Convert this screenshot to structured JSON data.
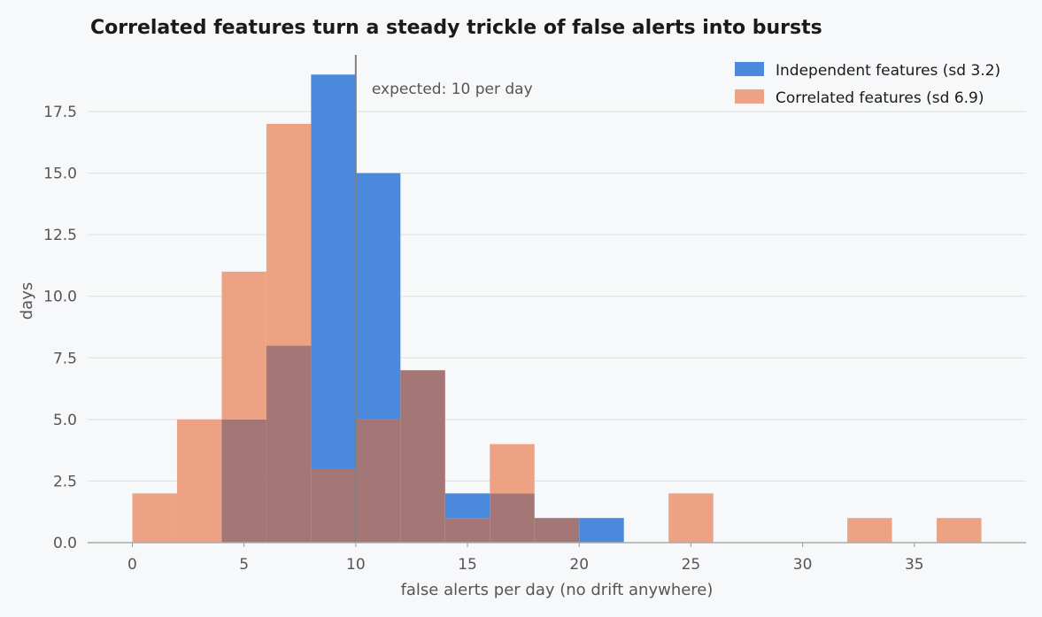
{
  "chart_data": {
    "type": "bar",
    "title": "Correlated features turn a steady trickle of false alerts into bursts",
    "xlabel": "false alerts per day (no drift anywhere)",
    "ylabel": "days",
    "xlim": [
      -2,
      40
    ],
    "ylim": [
      0,
      19.8
    ],
    "xticks": [
      "0",
      "5",
      "10",
      "15",
      "20",
      "25",
      "30",
      "35"
    ],
    "yticks": [
      "0.0",
      "2.5",
      "5.0",
      "7.5",
      "10.0",
      "12.5",
      "15.0",
      "17.5"
    ],
    "grid": "horizontal",
    "legend_position": "top-right",
    "bin_edges": [
      0,
      2,
      4,
      6,
      8,
      10,
      12,
      14,
      16,
      18,
      20,
      22,
      24,
      26,
      28,
      30,
      32,
      34,
      36,
      38
    ],
    "series": [
      {
        "name": "Independent features (sd 3.2)",
        "color": "#4a89dc",
        "values": [
          0,
          0,
          5,
          8,
          19,
          15,
          7,
          2,
          2,
          1,
          1,
          0,
          0,
          0,
          0,
          0,
          0,
          0,
          0
        ]
      },
      {
        "name": "Correlated features (sd 6.9)",
        "color": "#eda383",
        "values": [
          2,
          5,
          11,
          17,
          3,
          5,
          7,
          1,
          4,
          1,
          0,
          0,
          2,
          0,
          0,
          0,
          1,
          0,
          1
        ]
      }
    ],
    "overlap_color": "#a57676",
    "reference_line": {
      "x": 10,
      "label": "expected: 10 per day",
      "color": "#808080"
    }
  }
}
